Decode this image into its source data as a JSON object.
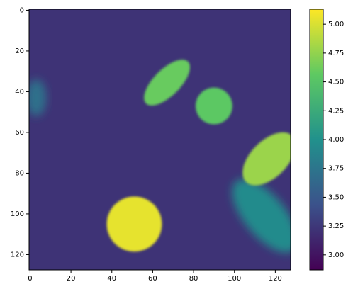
{
  "chart_data": {
    "type": "image",
    "xlim": [
      -0.5,
      127.5
    ],
    "ylim": [
      127.5,
      -0.5
    ],
    "xticks": [
      0,
      20,
      40,
      60,
      80,
      100,
      120
    ],
    "yticks": [
      0,
      20,
      40,
      60,
      80,
      100,
      120
    ],
    "clim": [
      2.87,
      5.13
    ],
    "colormap": [
      "#440154",
      "#3b528b",
      "#21918c",
      "#5ec962",
      "#fde725"
    ],
    "background_value": 3.22,
    "regions": [
      {
        "cx": 3,
        "cy": 43,
        "rx": 5,
        "ry": 9,
        "angle": 0,
        "value": 3.7
      },
      {
        "cx": 115,
        "cy": 101,
        "rx": 22,
        "ry": 10,
        "angle": 50,
        "value": 3.95
      },
      {
        "cx": 67,
        "cy": 35.5,
        "rx": 14.5,
        "ry": 6.5,
        "angle": -45,
        "value": 4.6
      },
      {
        "cx": 90,
        "cy": 47,
        "rx": 9,
        "ry": 9,
        "angle": 0,
        "value": 4.55
      },
      {
        "cx": 117,
        "cy": 73,
        "rx": 16,
        "ry": 9,
        "angle": -45,
        "value": 4.78
      },
      {
        "cx": 51,
        "cy": 105,
        "rx": 13.5,
        "ry": 13.5,
        "angle": 0,
        "value": 5.05
      }
    ],
    "colorbar_ticks": [
      {
        "value": 3,
        "label": "3.00"
      },
      {
        "value": 3.25,
        "label": "3.25"
      },
      {
        "value": 3.5,
        "label": "3.50"
      },
      {
        "value": 3.75,
        "label": "3.75"
      },
      {
        "value": 4,
        "label": "4.00"
      },
      {
        "value": 4.25,
        "label": "4.25"
      },
      {
        "value": 4.5,
        "label": "4.50"
      },
      {
        "value": 4.75,
        "label": "4.75"
      },
      {
        "value": 5,
        "label": "5.00"
      }
    ]
  }
}
